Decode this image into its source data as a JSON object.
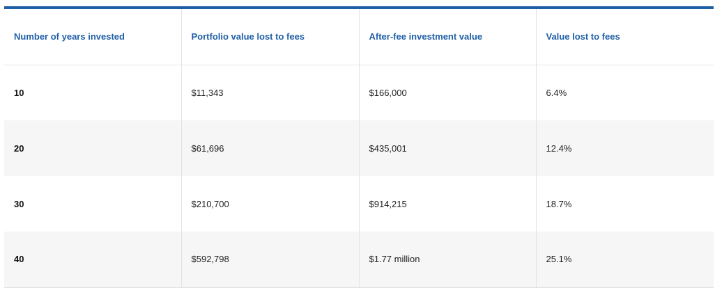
{
  "table": {
    "headers": [
      "Number of years invested",
      "Portfolio value lost to fees",
      "After-fee investment value",
      "Value lost to fees"
    ],
    "rows": [
      [
        "10",
        "$11,343",
        "$166,000",
        "6.4%"
      ],
      [
        "20",
        "$61,696",
        "$435,001",
        "12.4%"
      ],
      [
        "30",
        "$210,700",
        "$914,215",
        "18.7%"
      ],
      [
        "40",
        "$592,798",
        "$1.77 million",
        "25.1%"
      ]
    ]
  },
  "colors": {
    "accent": "#1f5fa6",
    "stripe": "#f6f6f6"
  }
}
